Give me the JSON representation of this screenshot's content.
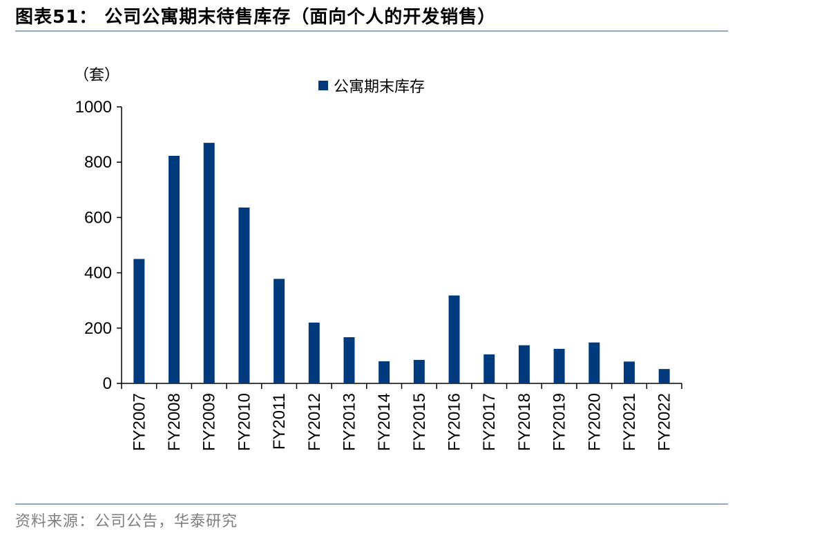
{
  "figure": {
    "title": "图表51： 公司公寓期末待售库存（面向个人的开发销售）",
    "source": "资料来源：公司公告，华泰研究"
  },
  "colors": {
    "bar": "#003a7d",
    "rule": "#8fa5c4",
    "axis": "#000000",
    "source_text": "#7f7f7f"
  },
  "chart_data": {
    "type": "bar",
    "title": "",
    "ylabel": "（套）",
    "xlabel": "",
    "ylim": [
      0,
      1000
    ],
    "yticks": [
      0,
      200,
      400,
      600,
      800,
      1000
    ],
    "grid": false,
    "legend_position": "top-center",
    "categories": [
      "FY2007",
      "FY2008",
      "FY2009",
      "FY2010",
      "FY2011",
      "FY2012",
      "FY2013",
      "FY2014",
      "FY2015",
      "FY2016",
      "FY2017",
      "FY2018",
      "FY2019",
      "FY2020",
      "FY2021",
      "FY2022"
    ],
    "series": [
      {
        "name": "公寓期末库存",
        "values": [
          450,
          823,
          870,
          636,
          378,
          220,
          167,
          80,
          85,
          318,
          105,
          138,
          125,
          148,
          79,
          52
        ]
      }
    ]
  }
}
